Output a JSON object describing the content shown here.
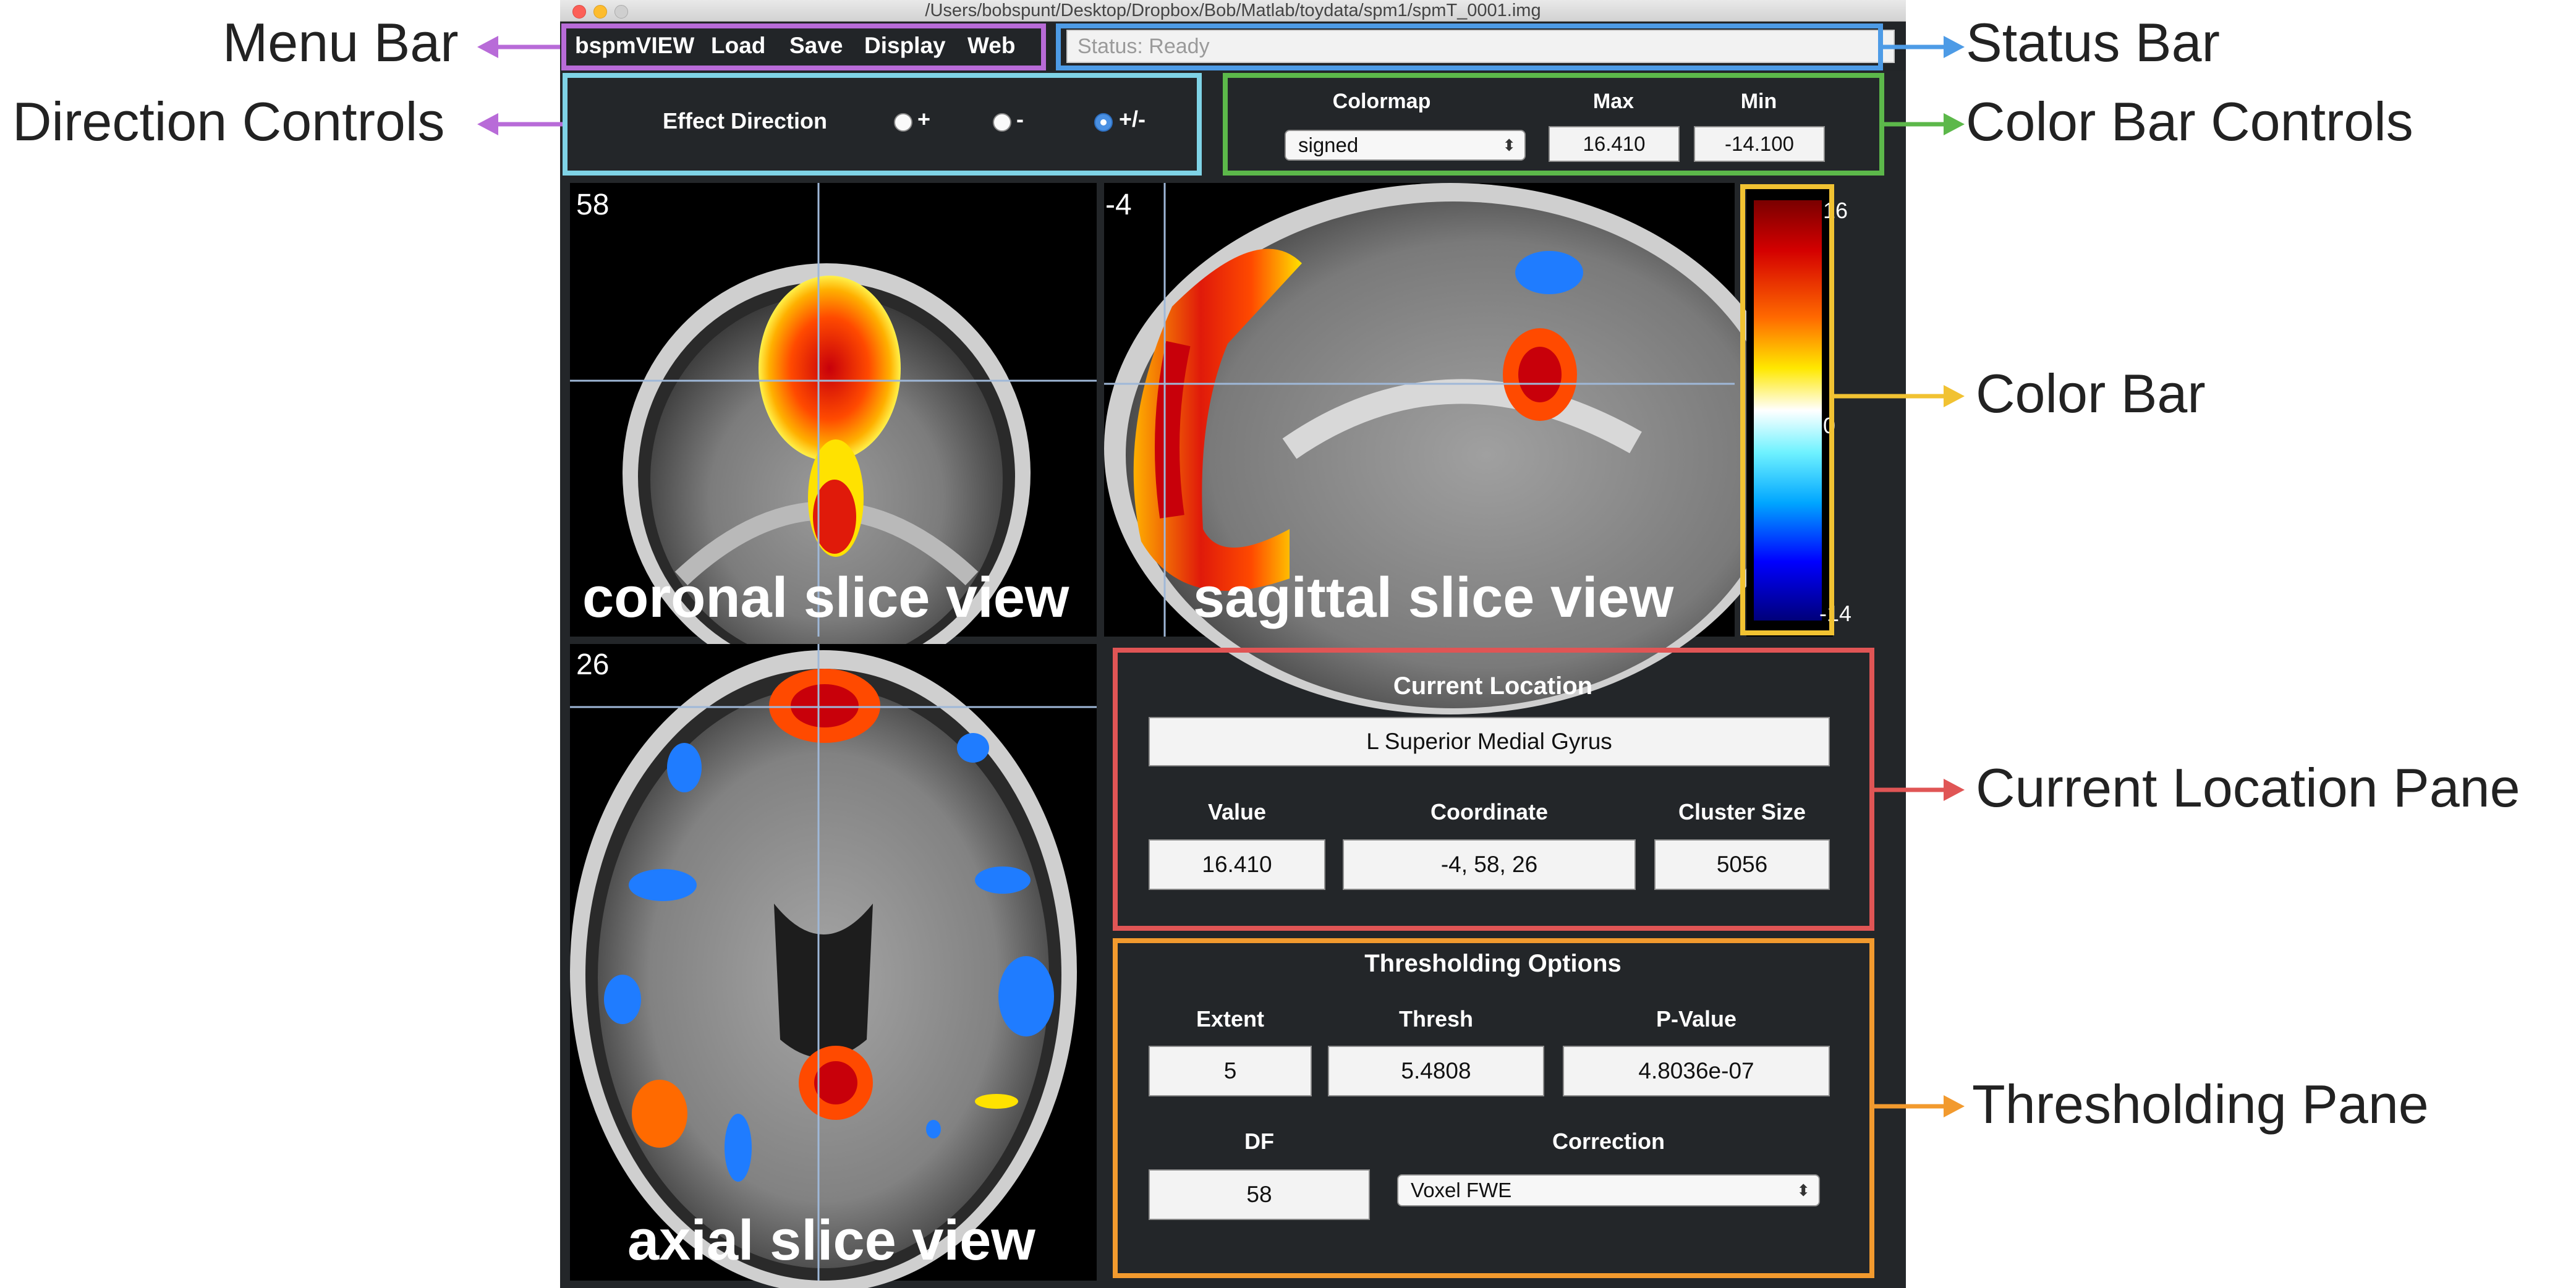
{
  "window": {
    "path": "/Users/bobspunt/Desktop/Dropbox/Bob/Matlab/toydata/spm1/spmT_0001.img",
    "traffic_colors": [
      "#fc5f57",
      "#fdbc2e",
      "#c9c9c9"
    ]
  },
  "menu": [
    "bspmVIEW",
    "Load",
    "Save",
    "Display",
    "Web"
  ],
  "status": "Status: Ready",
  "direction": {
    "label": "Effect Direction",
    "options": [
      "+",
      "-",
      "+/-"
    ],
    "selected": "+/-"
  },
  "colorbar_controls": {
    "colormap_label": "Colormap",
    "colormap_value": "signed",
    "max_label": "Max",
    "max_value": "16.410",
    "min_label": "Min",
    "min_value": "-14.100"
  },
  "views": {
    "coronal": {
      "number": "58",
      "label": "coronal slice view"
    },
    "sagittal": {
      "number": "-4",
      "label": "sagittal slice view"
    },
    "axial": {
      "number": "26",
      "label": "axial slice view"
    }
  },
  "colorbar": {
    "top": "16",
    "mid": "0",
    "bottom": "-14"
  },
  "current_location": {
    "title": "Current Location",
    "region": "L Superior Medial Gyrus",
    "value_label": "Value",
    "value": "16.410",
    "coord_label": "Coordinate",
    "coord": "-4, 58, 26",
    "cluster_label": "Cluster Size",
    "cluster": "5056"
  },
  "thresholding": {
    "title": "Thresholding Options",
    "extent_label": "Extent",
    "extent": "5",
    "thresh_label": "Thresh",
    "thresh": "5.4808",
    "p_label": "P-Value",
    "p": "4.8036e-07",
    "df_label": "DF",
    "df": "58",
    "correction_label": "Correction",
    "correction": "Voxel FWE"
  },
  "annotations": {
    "menu_bar": "Menu Bar",
    "direction_controls": "Direction Controls",
    "status_bar": "Status Bar",
    "color_bar_controls": "Color Bar Controls",
    "color_bar": "Color Bar",
    "current_location_pane": "Current Location Pane",
    "thresholding_pane": "Thresholding Pane",
    "colors": {
      "menu": "#b86bd8",
      "direction": "#7fd3e6",
      "status": "#4d9be6",
      "colorbar_controls": "#5cb84a",
      "colorbar": "#f1c232",
      "location": "#e05555",
      "thresholding": "#f29a2e"
    }
  }
}
